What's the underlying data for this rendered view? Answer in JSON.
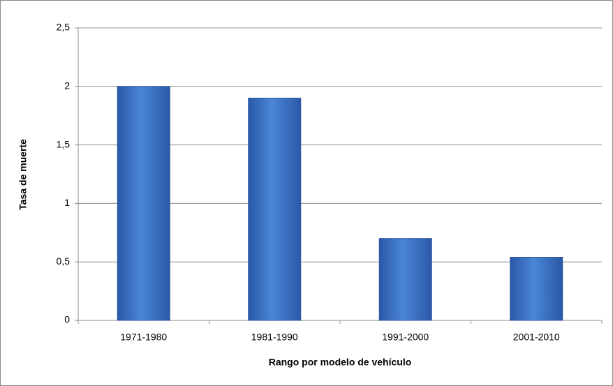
{
  "chart_data": {
    "type": "bar",
    "x_label": "Rango por modelo de vehículo",
    "y_label": "Tasa de muerte",
    "categories": [
      "1971-1980",
      "1981-1990",
      "1991-2000",
      "2001-2010"
    ],
    "values": [
      2.0,
      1.9,
      0.7,
      0.54
    ],
    "color": "#3d72c4",
    "ylim": [
      0,
      2.5
    ],
    "yticks": [
      0,
      {
        "value": 0.5,
        "label": "0,5"
      },
      1,
      {
        "value": 1.5,
        "label": "1,5"
      },
      2,
      {
        "value": 2.5,
        "label": "2,5"
      }
    ],
    "grid": true
  }
}
